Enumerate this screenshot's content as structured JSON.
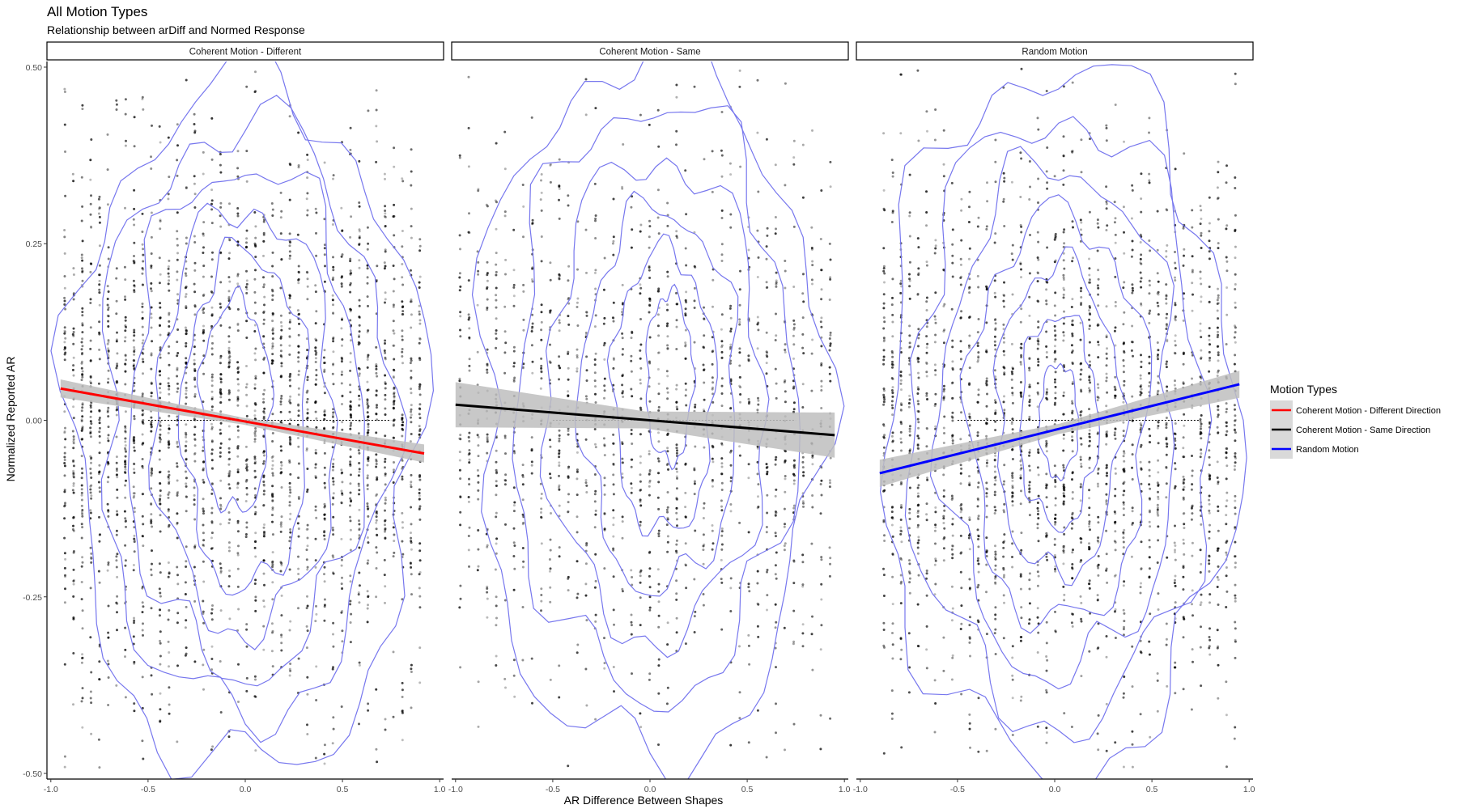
{
  "chart_data": {
    "type": "scatter",
    "title": "All Motion Types",
    "subtitle": "Relationship between arDiff and Normed Response",
    "xlabel": "AR Difference Between Shapes",
    "ylabel": "Normalized Reported AR",
    "xlim": [
      -1.0,
      1.0
    ],
    "ylim": [
      -0.5,
      0.5
    ],
    "x_ticks": [
      -1.0,
      -0.5,
      0.0,
      0.5,
      1.0
    ],
    "x_tick_labels": [
      "-1.0",
      "-0.5",
      "0.0",
      "0.5",
      "1.0"
    ],
    "y_ticks": [
      -0.5,
      -0.25,
      0.0,
      0.25,
      0.5
    ],
    "y_tick_labels": [
      "-0.50",
      "-0.25",
      "0.00",
      "0.25",
      "0.50"
    ],
    "grid": false,
    "legend": {
      "title": "Motion Types",
      "position": "right",
      "entries": [
        {
          "label": "Coherent Motion - Different Direction",
          "color": "#ff0000"
        },
        {
          "label": "Coherent Motion - Same Direction",
          "color": "#000000"
        },
        {
          "label": "Random Motion",
          "color": "#0000ff"
        }
      ]
    },
    "point_color": "#000000",
    "density_contour_color": "#7777ee",
    "ci_band_color": "#bebebe",
    "reference_line": {
      "y": 0.0,
      "style": "dotted"
    },
    "panels": [
      {
        "strip": "Coherent Motion - Different",
        "fit": {
          "x_start": -0.95,
          "y_start": 0.045,
          "x_end": 0.92,
          "y_end": -0.047,
          "color": "#ff0000",
          "ci_halfwidth": 0.008
        },
        "point_x_range": [
          -0.95,
          0.92
        ],
        "point_count": 2600,
        "contours": [
          {
            "cx": 0.0,
            "cy": -0.01,
            "rx": 0.9,
            "ry": 0.49
          },
          {
            "cx": 0.0,
            "cy": 0.0,
            "rx": 0.74,
            "ry": 0.42
          },
          {
            "cx": 0.0,
            "cy": 0.0,
            "rx": 0.6,
            "ry": 0.36
          },
          {
            "cx": 0.0,
            "cy": 0.0,
            "rx": 0.46,
            "ry": 0.3
          },
          {
            "cx": 0.0,
            "cy": 0.0,
            "rx": 0.32,
            "ry": 0.24
          },
          {
            "cx": -0.05,
            "cy": 0.02,
            "rx": 0.18,
            "ry": 0.15
          }
        ]
      },
      {
        "strip": "Coherent Motion - Same",
        "fit": {
          "x_start": -1.0,
          "y_start": 0.022,
          "x_end": 0.95,
          "y_end": -0.021,
          "color": "#000000",
          "ci_halfwidth": 0.02
        },
        "point_x_range": [
          -1.0,
          0.95
        ],
        "point_count": 1500,
        "contours": [
          {
            "cx": 0.0,
            "cy": 0.02,
            "rx": 0.88,
            "ry": 0.5
          },
          {
            "cx": 0.02,
            "cy": 0.03,
            "rx": 0.72,
            "ry": 0.42
          },
          {
            "cx": 0.03,
            "cy": 0.03,
            "rx": 0.56,
            "ry": 0.34
          },
          {
            "cx": 0.05,
            "cy": 0.03,
            "rx": 0.4,
            "ry": 0.27
          },
          {
            "cx": 0.07,
            "cy": 0.04,
            "rx": 0.26,
            "ry": 0.2
          },
          {
            "cx": 0.1,
            "cy": 0.06,
            "rx": 0.12,
            "ry": 0.12
          }
        ]
      },
      {
        "strip": "Random Motion",
        "fit": {
          "x_start": -0.9,
          "y_start": -0.075,
          "x_end": 0.95,
          "y_end": 0.051,
          "color": "#0000ff",
          "ci_halfwidth": 0.012
        },
        "point_x_range": [
          -0.9,
          0.95
        ],
        "point_count": 2300,
        "contours": [
          {
            "cx": 0.02,
            "cy": 0.0,
            "rx": 0.9,
            "ry": 0.5
          },
          {
            "cx": 0.02,
            "cy": 0.0,
            "rx": 0.76,
            "ry": 0.43
          },
          {
            "cx": 0.02,
            "cy": 0.0,
            "rx": 0.6,
            "ry": 0.36
          },
          {
            "cx": 0.02,
            "cy": 0.0,
            "rx": 0.46,
            "ry": 0.29
          },
          {
            "cx": 0.02,
            "cy": 0.0,
            "rx": 0.32,
            "ry": 0.22
          },
          {
            "cx": 0.02,
            "cy": 0.0,
            "rx": 0.2,
            "ry": 0.15
          },
          {
            "cx": 0.02,
            "cy": 0.0,
            "rx": 0.1,
            "ry": 0.08
          }
        ]
      }
    ]
  }
}
